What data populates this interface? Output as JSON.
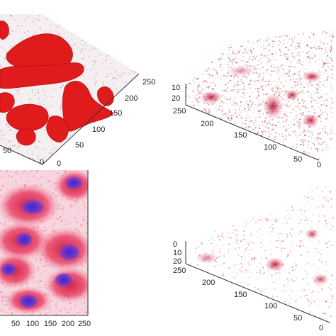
{
  "panels": [
    {
      "id": "top-left",
      "view": "3d-surface",
      "color": "#e01b1b",
      "ticks_right_axis": [
        "250",
        "200",
        "150",
        "100",
        "50",
        "0"
      ],
      "ticks_left_axis": [
        "50",
        "0"
      ]
    },
    {
      "id": "top-right",
      "view": "3d-point-cloud",
      "color": "#b0102a",
      "ticks_z_axis": [
        "10",
        "20"
      ],
      "ticks_left_axis": [
        "250",
        "200",
        "150",
        "100",
        "50",
        "0"
      ]
    },
    {
      "id": "bottom-left",
      "view": "2d-image",
      "colors": {
        "cytoplasm": "#e8345a",
        "nucleus": "#4b2ad8",
        "background": "#f7d6df"
      },
      "ticks_x_axis": [
        "50",
        "100",
        "150",
        "200",
        "250"
      ]
    },
    {
      "id": "bottom-right",
      "view": "3d-point-cloud",
      "color": "#d0143a",
      "ticks_z_axis": [
        "0",
        "10",
        "20"
      ],
      "ticks_left_axis": [
        "250",
        "200",
        "150",
        "100",
        "50",
        "0"
      ]
    }
  ]
}
